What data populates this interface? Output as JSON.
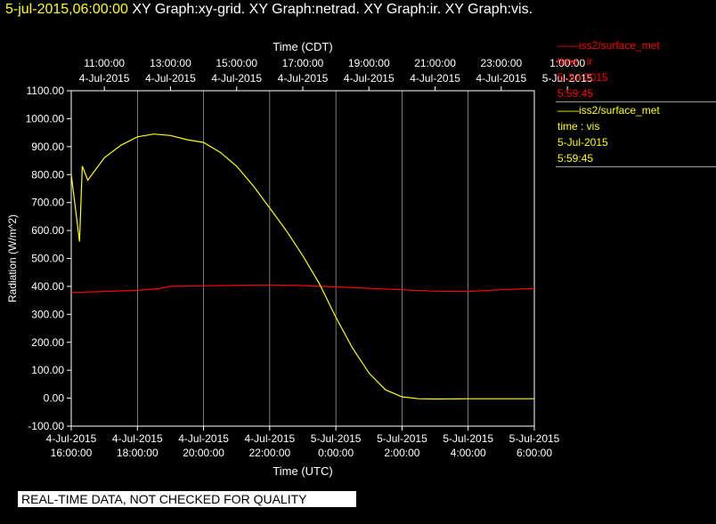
{
  "header": {
    "timestamp": "5-jul-2015,06:00:00",
    "graphs": "XY Graph:xy-grid.  XY Graph:netrad.  XY Graph:ir.  XY Graph:vis."
  },
  "legend": [
    {
      "series": "iss2/surface_met",
      "vars": "time : ir",
      "date": "5-Jul-2015",
      "time": "5:59:45",
      "color": "#ff0000"
    },
    {
      "series": "iss2/surface_met",
      "vars": "time : vis",
      "date": "5-Jul-2015",
      "time": "5:59:45",
      "color": "#ffff00"
    }
  ],
  "banner": "REAL-TIME DATA, NOT CHECKED FOR QUALITY",
  "chart_data": {
    "type": "line",
    "xlabel": "Time (UTC)",
    "x2label": "Time (CDT)",
    "ylabel": "Radiation (W/m^2)",
    "xlim": [
      "4-Jul-2015 16:00:00",
      "5-Jul-2015 06:00:00"
    ],
    "ylim": [
      -100,
      1100
    ],
    "yticks": [
      "1100.00",
      "1000.00",
      "900.00",
      "800.00",
      "700.00",
      "600.00",
      "500.00",
      "400.00",
      "300.00",
      "200.00",
      "100.00",
      "0.00",
      "-100.00"
    ],
    "xticks_bottom": [
      {
        "date": "4-Jul-2015",
        "time": "16:00:00"
      },
      {
        "date": "4-Jul-2015",
        "time": "18:00:00"
      },
      {
        "date": "4-Jul-2015",
        "time": "20:00:00"
      },
      {
        "date": "4-Jul-2015",
        "time": "22:00:00"
      },
      {
        "date": "5-Jul-2015",
        "time": "0:00:00"
      },
      {
        "date": "5-Jul-2015",
        "time": "2:00:00"
      },
      {
        "date": "5-Jul-2015",
        "time": "4:00:00"
      },
      {
        "date": "5-Jul-2015",
        "time": "6:00:00"
      }
    ],
    "xticks_top": [
      {
        "date": "4-Jul-2015",
        "time": "11:00:00"
      },
      {
        "date": "4-Jul-2015",
        "time": "13:00:00"
      },
      {
        "date": "4-Jul-2015",
        "time": "15:00:00"
      },
      {
        "date": "4-Jul-2015",
        "time": "17:00:00"
      },
      {
        "date": "4-Jul-2015",
        "time": "19:00:00"
      },
      {
        "date": "4-Jul-2015",
        "time": "21:00:00"
      },
      {
        "date": "4-Jul-2015",
        "time": "23:00:00"
      },
      {
        "date": "5-Jul-2015",
        "time": "1:00:00"
      }
    ],
    "grid": true,
    "series": [
      {
        "name": "time : ir",
        "color": "#ff0000",
        "x": [
          "4-Jul-2015 16:00",
          "4-Jul-2015 17:00",
          "4-Jul-2015 18:00",
          "4-Jul-2015 18:40",
          "4-Jul-2015 19:00",
          "4-Jul-2015 20:00",
          "4-Jul-2015 21:00",
          "4-Jul-2015 22:00",
          "4-Jul-2015 23:00",
          "5-Jul-2015 00:00",
          "5-Jul-2015 01:00",
          "5-Jul-2015 02:00",
          "5-Jul-2015 03:00",
          "5-Jul-2015 04:00",
          "5-Jul-2015 05:00",
          "5-Jul-2015 06:00"
        ],
        "y": [
          378,
          382,
          386,
          392,
          400,
          402,
          404,
          405,
          403,
          398,
          393,
          388,
          383,
          382,
          388,
          393
        ]
      },
      {
        "name": "time : vis",
        "color": "#ffff00",
        "x": [
          "4-Jul-2015 16:00",
          "4-Jul-2015 16:15",
          "4-Jul-2015 16:20",
          "4-Jul-2015 16:30",
          "4-Jul-2015 17:00",
          "4-Jul-2015 17:30",
          "4-Jul-2015 18:00",
          "4-Jul-2015 18:30",
          "4-Jul-2015 19:00",
          "4-Jul-2015 19:30",
          "4-Jul-2015 20:00",
          "4-Jul-2015 20:30",
          "4-Jul-2015 21:00",
          "4-Jul-2015 21:30",
          "4-Jul-2015 22:00",
          "4-Jul-2015 22:30",
          "4-Jul-2015 23:00",
          "4-Jul-2015 23:30",
          "5-Jul-2015 00:00",
          "5-Jul-2015 00:30",
          "5-Jul-2015 01:00",
          "5-Jul-2015 01:30",
          "5-Jul-2015 02:00",
          "5-Jul-2015 02:30",
          "5-Jul-2015 03:00",
          "5-Jul-2015 04:00",
          "5-Jul-2015 05:00",
          "5-Jul-2015 06:00"
        ],
        "y": [
          800,
          560,
          830,
          780,
          860,
          905,
          935,
          945,
          940,
          925,
          915,
          880,
          830,
          760,
          680,
          600,
          510,
          410,
          290,
          180,
          90,
          30,
          5,
          -2,
          -3,
          -2,
          -2,
          -2
        ]
      }
    ]
  }
}
